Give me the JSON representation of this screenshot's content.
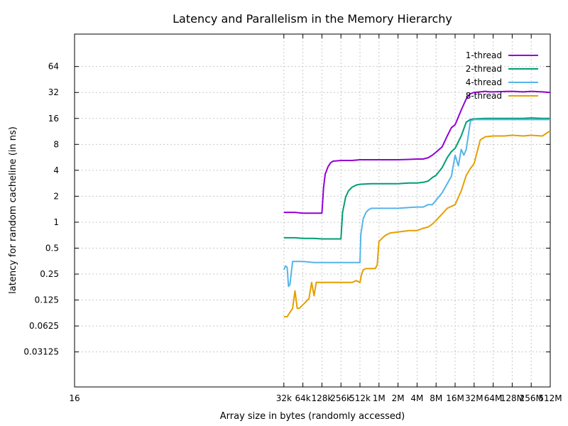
{
  "chart_data": {
    "type": "line",
    "title": "Latency and Parallelism in the Memory Hierarchy",
    "xlabel": "Array size in bytes (randomly accessed)",
    "ylabel": "latency for random cacheline (in ns)",
    "x_scale": "log2",
    "y_scale": "log2",
    "x_tick_labels": [
      "16",
      "32k",
      "64k",
      "128k",
      "256k",
      "512k",
      "1M",
      "2M",
      "4M",
      "8M",
      "16M",
      "32M",
      "64M",
      "128M",
      "256M",
      "512M"
    ],
    "y_tick_labels": [
      "0.03125",
      "0.0625",
      "0.125",
      "0.25",
      "0.5",
      "1",
      "2",
      "4",
      "8",
      "16",
      "32",
      "64"
    ],
    "grid": true,
    "legend_position": "top-right",
    "series": [
      {
        "name": "1-thread",
        "color": "#9400d3",
        "x": [
          "32k",
          "48k",
          "64k",
          "96k",
          "128k",
          "136k",
          "144k",
          "160k",
          "176k",
          "192k",
          "224k",
          "256k",
          "384k",
          "512k",
          "1M",
          "2M",
          "3M",
          "4M",
          "5M",
          "6M",
          "7M",
          "8M",
          "10M",
          "12M",
          "14M",
          "16M",
          "20M",
          "24M",
          "28M",
          "32M",
          "40M",
          "48M",
          "56M",
          "64M",
          "96M",
          "128M",
          "192M",
          "256M",
          "384M",
          "512M"
        ],
        "y": [
          1.3,
          1.3,
          1.27,
          1.27,
          1.27,
          2.5,
          3.6,
          4.4,
          4.9,
          5.1,
          5.15,
          5.2,
          5.2,
          5.3,
          5.3,
          5.3,
          5.35,
          5.4,
          5.4,
          5.6,
          6.0,
          6.5,
          7.5,
          10.0,
          12.5,
          13.5,
          20.0,
          27.0,
          31.0,
          32.0,
          32.5,
          33.0,
          32.5,
          32.5,
          32.8,
          33.0,
          32.5,
          33.0,
          32.5,
          32.0
        ]
      },
      {
        "name": "2-thread",
        "color": "#009e73",
        "x": [
          "32k",
          "48k",
          "64k",
          "96k",
          "128k",
          "192k",
          "256k",
          "272k",
          "304k",
          "336k",
          "384k",
          "448k",
          "512k",
          "768k",
          "1M",
          "1.5M",
          "2M",
          "3M",
          "4M",
          "5M",
          "6M",
          "7M",
          "8M",
          "10M",
          "12M",
          "14M",
          "16M",
          "20M",
          "24M",
          "28M",
          "32M",
          "48M",
          "64M",
          "96M",
          "128M",
          "192M",
          "256M",
          "384M",
          "512M"
        ],
        "y": [
          0.66,
          0.66,
          0.65,
          0.65,
          0.64,
          0.64,
          0.64,
          1.3,
          1.95,
          2.3,
          2.55,
          2.7,
          2.75,
          2.8,
          2.8,
          2.8,
          2.8,
          2.85,
          2.85,
          2.9,
          3.0,
          3.3,
          3.5,
          4.3,
          5.6,
          6.6,
          7.2,
          10.0,
          14.5,
          15.5,
          15.8,
          16.0,
          16.0,
          16.0,
          16.0,
          16.0,
          16.2,
          16.0,
          16.0
        ]
      },
      {
        "name": "4-thread",
        "color": "#56b4e9",
        "x": [
          "32k",
          "34k",
          "36k",
          "38k",
          "40k",
          "44k",
          "48k",
          "64k",
          "96k",
          "128k",
          "192k",
          "256k",
          "384k",
          "512k",
          "528k",
          "576k",
          "640k",
          "704k",
          "768k",
          "1M",
          "1.5M",
          "2M",
          "3M",
          "4M",
          "5M",
          "6M",
          "7M",
          "8M",
          "10M",
          "12M",
          "14M",
          "16M",
          "18M",
          "20M",
          "22M",
          "24M",
          "28M",
          "32M",
          "48M",
          "64M",
          "96M",
          "128M",
          "192M",
          "256M",
          "384M",
          "512M"
        ],
        "y": [
          0.28,
          0.31,
          0.3,
          0.18,
          0.19,
          0.35,
          0.35,
          0.35,
          0.34,
          0.34,
          0.34,
          0.34,
          0.34,
          0.34,
          0.72,
          1.1,
          1.3,
          1.4,
          1.45,
          1.45,
          1.45,
          1.45,
          1.48,
          1.5,
          1.5,
          1.6,
          1.6,
          1.8,
          2.2,
          2.8,
          3.4,
          6.0,
          4.5,
          7.0,
          6.0,
          7.0,
          15.0,
          15.5,
          15.5,
          15.5,
          15.5,
          15.5,
          15.5,
          15.5,
          15.5,
          15.5
        ]
      },
      {
        "name": "8-thread",
        "color": "#e69f00",
        "x": [
          "32k",
          "36k",
          "40k",
          "44k",
          "48k",
          "52k",
          "56k",
          "64k",
          "72k",
          "80k",
          "88k",
          "96k",
          "104k",
          "112k",
          "128k",
          "192k",
          "256k",
          "384k",
          "448k",
          "512k",
          "544k",
          "576k",
          "640k",
          "768k",
          "896k",
          "960k",
          "1M",
          "1.25M",
          "1.5M",
          "2M",
          "3M",
          "4M",
          "5M",
          "6M",
          "7M",
          "8M",
          "10M",
          "12M",
          "16M",
          "20M",
          "24M",
          "28M",
          "32M",
          "40M",
          "48M",
          "64M",
          "96M",
          "128M",
          "192M",
          "256M",
          "384M",
          "512M"
        ],
        "y": [
          0.08,
          0.08,
          0.09,
          0.1,
          0.16,
          0.1,
          0.1,
          0.11,
          0.12,
          0.13,
          0.2,
          0.14,
          0.2,
          0.2,
          0.2,
          0.2,
          0.2,
          0.2,
          0.21,
          0.2,
          0.25,
          0.28,
          0.29,
          0.29,
          0.29,
          0.32,
          0.6,
          0.7,
          0.75,
          0.77,
          0.8,
          0.8,
          0.85,
          0.88,
          0.95,
          1.05,
          1.25,
          1.45,
          1.6,
          2.3,
          3.5,
          4.2,
          4.8,
          9.0,
          9.8,
          10.0,
          10.0,
          10.2,
          10.0,
          10.2,
          10.0,
          11.5
        ]
      }
    ]
  }
}
